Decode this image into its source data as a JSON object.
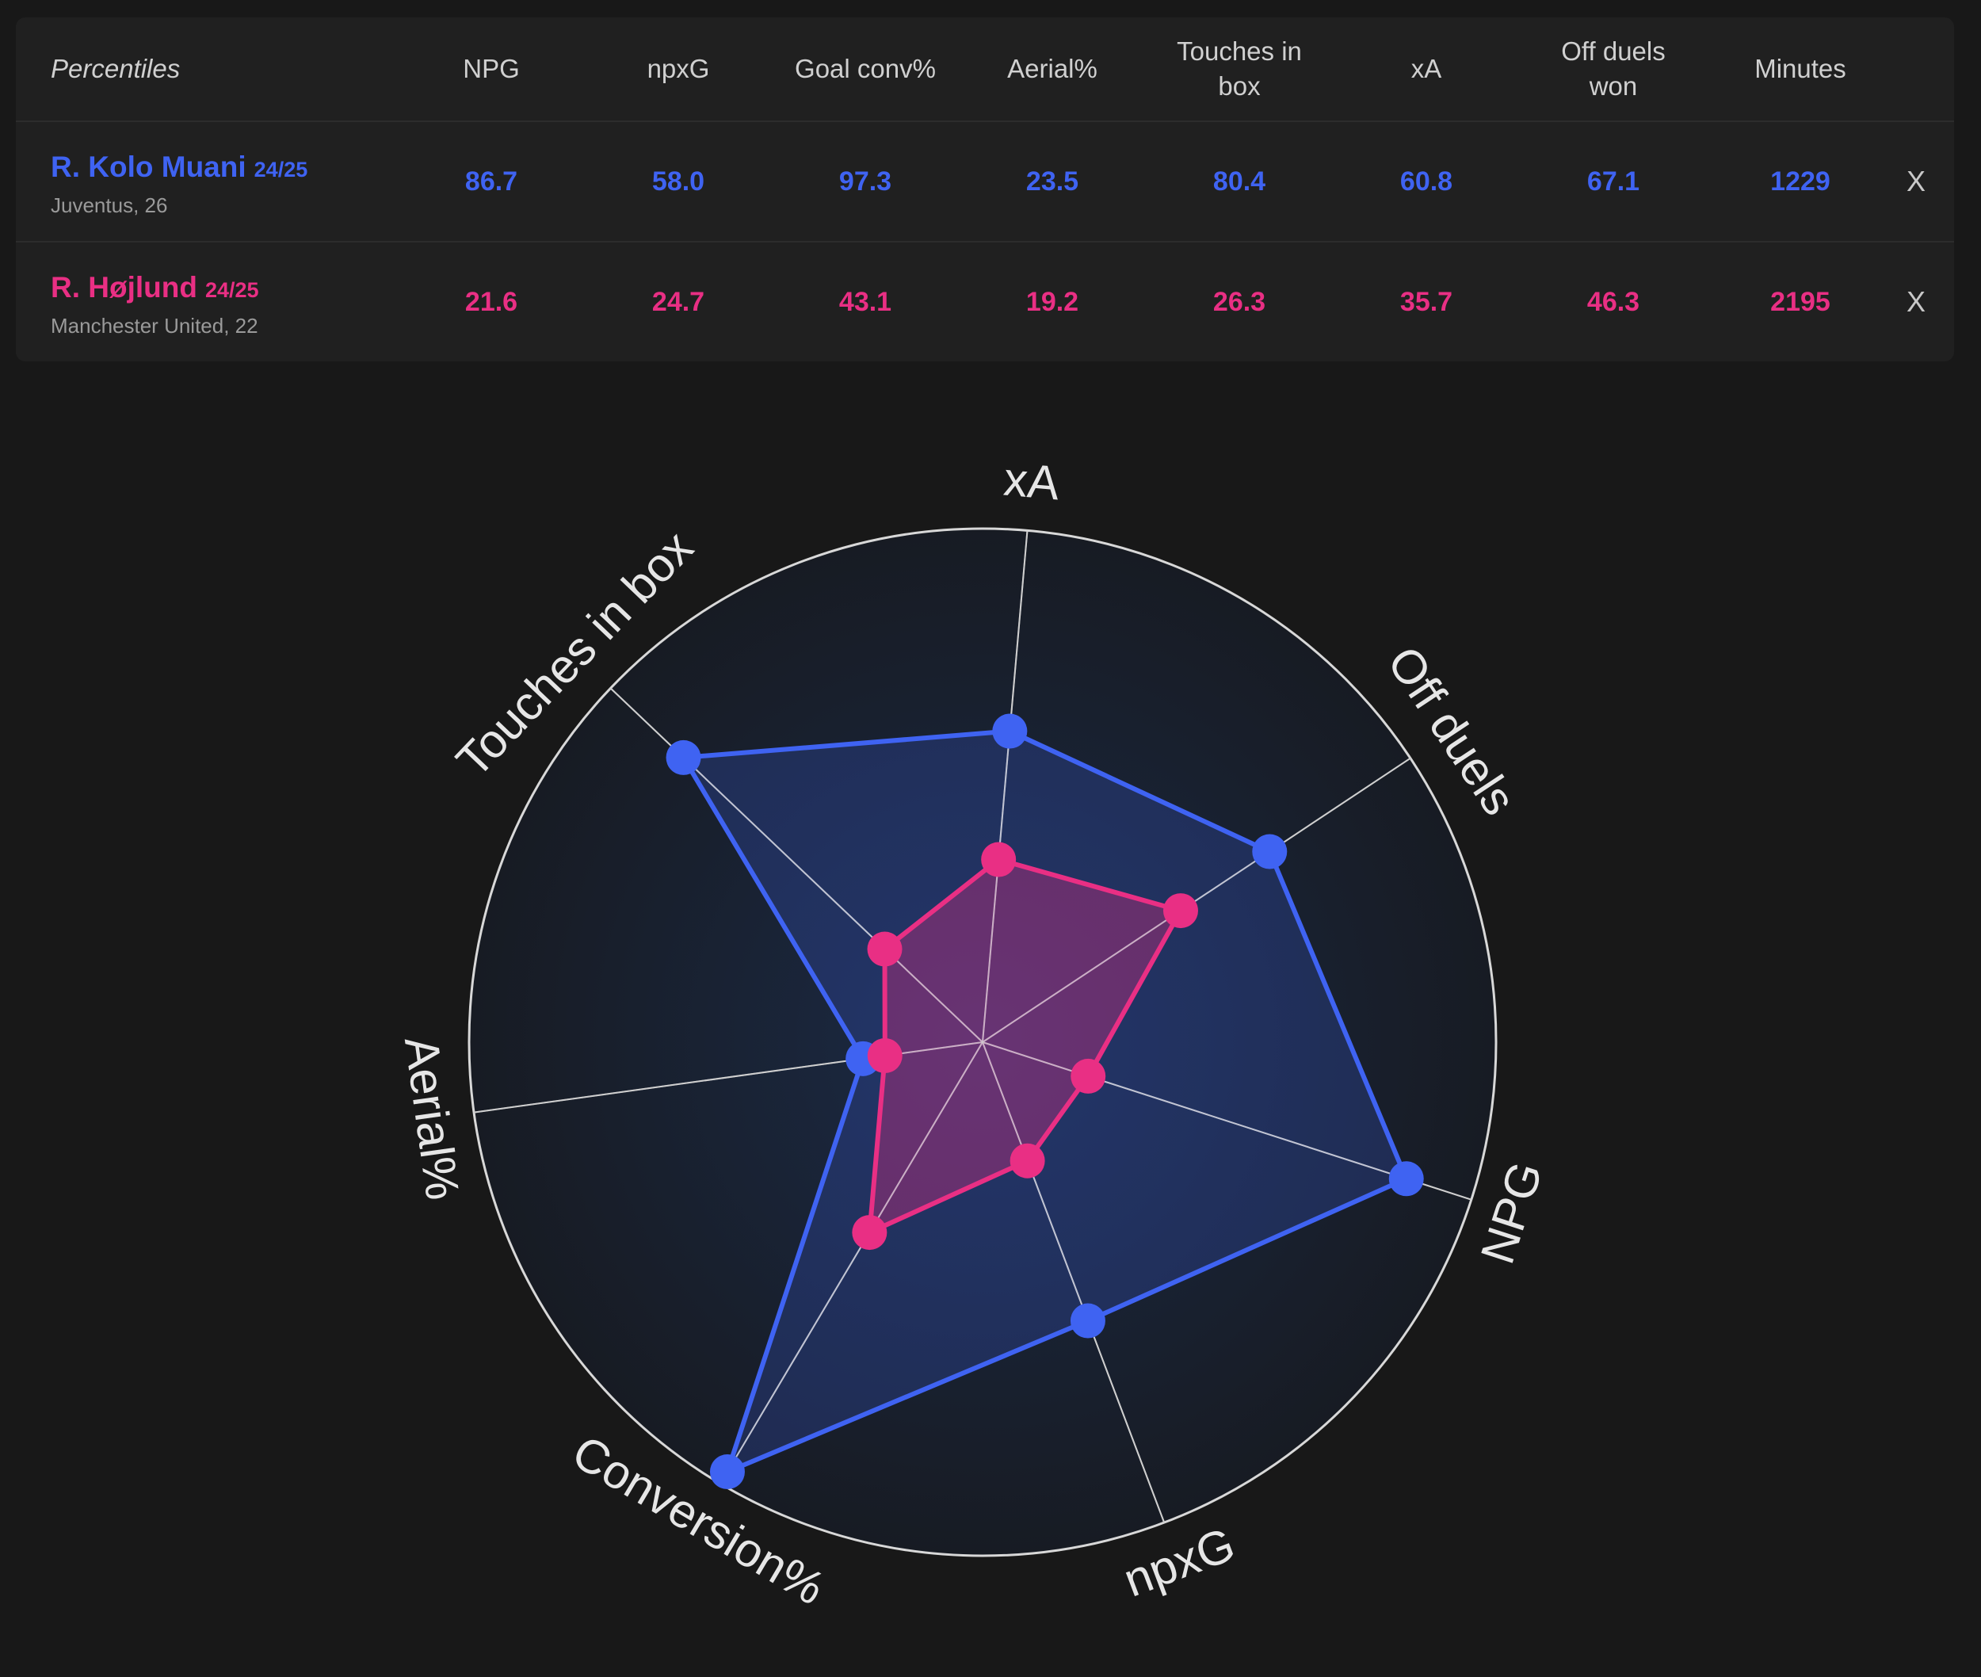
{
  "table": {
    "header_label": "Percentiles",
    "columns": [
      {
        "key": "npg",
        "label": "NPG"
      },
      {
        "key": "npxg",
        "label": "npxG"
      },
      {
        "key": "goal_conv",
        "label": "Goal conv%"
      },
      {
        "key": "aerial",
        "label": "Aerial%"
      },
      {
        "key": "touches_box",
        "label": "Touches in box"
      },
      {
        "key": "xa",
        "label": "xA"
      },
      {
        "key": "off_duels",
        "label": "Off duels won"
      },
      {
        "key": "minutes",
        "label": "Minutes"
      }
    ],
    "remove_label": "X",
    "players": [
      {
        "name": "R. Kolo Muani",
        "season": "24/25",
        "club_age": "Juventus, 26",
        "color": "#3f63f2",
        "values": [
          "86.7",
          "58.0",
          "97.3",
          "23.5",
          "80.4",
          "60.8",
          "67.1",
          "1229"
        ]
      },
      {
        "name": "R. Højlund",
        "season": "24/25",
        "club_age": "Manchester United, 22",
        "color": "#e92f84",
        "values": [
          "21.6",
          "24.7",
          "43.1",
          "19.2",
          "26.3",
          "35.7",
          "46.3",
          "2195"
        ]
      }
    ]
  },
  "chart_data": {
    "type": "radar",
    "axes": [
      "xA",
      "Off duels",
      "NPG",
      "npxG",
      "Conversion%",
      "Aerial%",
      "Touches in box"
    ],
    "range": [
      0,
      100
    ],
    "series": [
      {
        "name": "R. Kolo Muani",
        "color": "#3f63f2",
        "values": [
          60.8,
          67.1,
          86.7,
          58.0,
          97.3,
          23.5,
          80.4
        ]
      },
      {
        "name": "R. Højlund",
        "color": "#e92f84",
        "values": [
          35.7,
          46.3,
          21.6,
          24.7,
          43.1,
          19.2,
          26.3
        ]
      }
    ]
  }
}
